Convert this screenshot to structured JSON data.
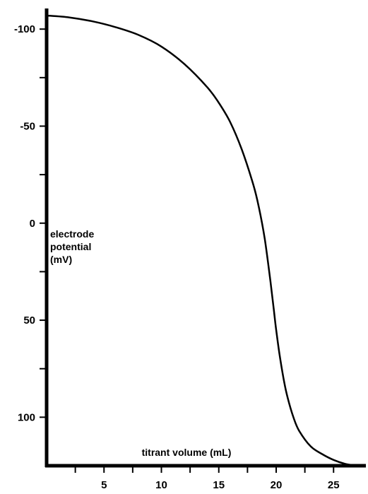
{
  "chart_data": {
    "type": "line",
    "title": "",
    "xlabel": "titrant volume (mL)",
    "ylabel_lines": [
      "electrode",
      "potential",
      "(mV)"
    ],
    "xlim": [
      0,
      28
    ],
    "ylim": [
      -115,
      125
    ],
    "y_inverted": true,
    "x_ticks": [
      {
        "value": 2.5,
        "label": ""
      },
      {
        "value": 5,
        "label": "5"
      },
      {
        "value": 7.5,
        "label": ""
      },
      {
        "value": 10,
        "label": "10"
      },
      {
        "value": 12.5,
        "label": ""
      },
      {
        "value": 15,
        "label": "15"
      },
      {
        "value": 17.5,
        "label": ""
      },
      {
        "value": 20,
        "label": "20"
      },
      {
        "value": 22.5,
        "label": ""
      },
      {
        "value": 25,
        "label": "25"
      }
    ],
    "y_ticks": [
      {
        "value": -100,
        "label": "-100"
      },
      {
        "value": -75,
        "label": ""
      },
      {
        "value": -50,
        "label": "-50"
      },
      {
        "value": -25,
        "label": ""
      },
      {
        "value": 0,
        "label": "0"
      },
      {
        "value": 25,
        "label": ""
      },
      {
        "value": 50,
        "label": "50"
      },
      {
        "value": 75,
        "label": ""
      },
      {
        "value": 100,
        "label": "100"
      }
    ],
    "grid": false,
    "legend": "none",
    "series": [
      {
        "color": "#000000",
        "points": [
          [
            0,
            -107
          ],
          [
            2,
            -106
          ],
          [
            4,
            -104
          ],
          [
            6,
            -101
          ],
          [
            8,
            -97
          ],
          [
            10,
            -91
          ],
          [
            12,
            -82
          ],
          [
            14,
            -70
          ],
          [
            15,
            -62
          ],
          [
            16,
            -52
          ],
          [
            17,
            -38
          ],
          [
            18,
            -20
          ],
          [
            18.5,
            -8
          ],
          [
            19,
            8
          ],
          [
            19.5,
            30
          ],
          [
            19.8,
            45
          ],
          [
            20,
            55
          ],
          [
            20.3,
            68
          ],
          [
            20.7,
            82
          ],
          [
            21,
            90
          ],
          [
            21.5,
            100
          ],
          [
            22,
            107
          ],
          [
            23,
            115
          ],
          [
            24,
            119
          ],
          [
            25,
            122
          ],
          [
            26,
            124
          ],
          [
            27,
            125
          ]
        ]
      }
    ]
  }
}
